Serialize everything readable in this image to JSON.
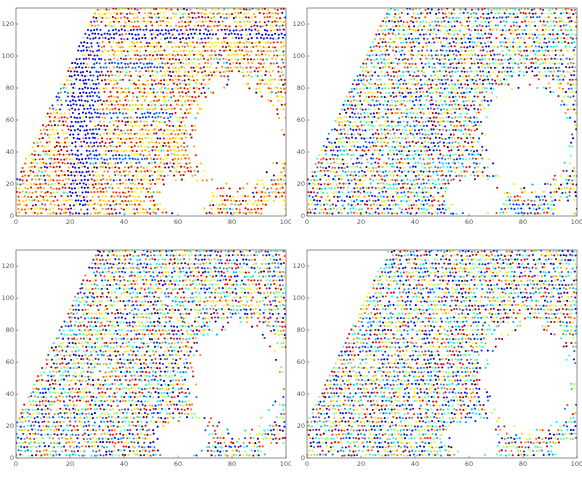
{
  "chart_data": [
    {
      "type": "scatter",
      "panel": "top-left",
      "title": "",
      "xlabel": "",
      "ylabel": "",
      "xlim": [
        0,
        100
      ],
      "ylim": [
        0,
        130
      ],
      "xticks": [
        "0",
        "20",
        "40",
        "60",
        "80",
        "100"
      ],
      "yticks": [
        "0",
        "20",
        "40",
        "60",
        "80",
        "100",
        "120"
      ],
      "grid": false,
      "colormap": "jet",
      "colormap_colors": [
        "#00008f",
        "#0000ff",
        "#00ffff",
        "#ffff00",
        "#ff0000",
        "#800000"
      ],
      "pattern": "structured",
      "structures": [
        {
          "kind": "vertical-band",
          "x": [
            20,
            27
          ],
          "y": [
            0,
            130
          ],
          "value": 0.08
        },
        {
          "kind": "horizontal-band",
          "x": [
            27,
            100
          ],
          "y": [
            110,
            118
          ],
          "value": 0.1
        },
        {
          "kind": "horizontal-band",
          "x": [
            0,
            20
          ],
          "y": [
            69,
            75
          ],
          "value": 0.18
        },
        {
          "kind": "vertical-band",
          "x": [
            27,
            31
          ],
          "y": [
            36,
            110
          ],
          "value": 0.15
        },
        {
          "kind": "horizontal-band",
          "x": [
            27,
            55
          ],
          "y": [
            91,
            96
          ],
          "value": 0.2
        },
        {
          "kind": "horizontal-band",
          "x": [
            27,
            58
          ],
          "y": [
            60,
            65
          ],
          "value": 0.2
        },
        {
          "kind": "horizontal-band",
          "x": [
            27,
            52
          ],
          "y": [
            33,
            38
          ],
          "value": 0.2
        },
        {
          "kind": "horizontal-band",
          "x": [
            8,
            20
          ],
          "y": [
            72,
            82
          ],
          "value": 0.28
        }
      ],
      "empty_regions": [
        {
          "cx": 82,
          "cy": 50,
          "rx": 17,
          "ry": 34
        },
        {
          "cx": 62,
          "cy": 12,
          "rx": 10,
          "ry": 12
        },
        {
          "cx": 96,
          "cy": 4,
          "rx": 4,
          "ry": 6
        }
      ]
    },
    {
      "type": "scatter",
      "panel": "top-right",
      "title": "",
      "xlabel": "",
      "ylabel": "",
      "xlim": [
        0,
        100
      ],
      "ylim": [
        0,
        130
      ],
      "xticks": [
        "0",
        "20",
        "40",
        "60",
        "80",
        "100"
      ],
      "yticks": [
        "0",
        "20",
        "40",
        "60",
        "80",
        "100",
        "120"
      ],
      "grid": false,
      "colormap": "jet",
      "pattern": "random",
      "structures": [],
      "empty_regions": [
        {
          "cx": 82,
          "cy": 50,
          "rx": 17,
          "ry": 34
        },
        {
          "cx": 62,
          "cy": 12,
          "rx": 10,
          "ry": 12
        },
        {
          "cx": 96,
          "cy": 4,
          "rx": 4,
          "ry": 6
        }
      ]
    },
    {
      "type": "scatter",
      "panel": "bottom-left",
      "title": "",
      "xlabel": "",
      "ylabel": "",
      "xlim": [
        0,
        100
      ],
      "ylim": [
        0,
        130
      ],
      "xticks": [
        "0",
        "20",
        "40",
        "60",
        "80",
        "100"
      ],
      "yticks": [
        "0",
        "20",
        "40",
        "60",
        "80",
        "100",
        "120"
      ],
      "grid": false,
      "colormap": "jet",
      "pattern": "random",
      "structures": [],
      "empty_regions": [
        {
          "cx": 82,
          "cy": 50,
          "rx": 17,
          "ry": 34
        },
        {
          "cx": 62,
          "cy": 12,
          "rx": 10,
          "ry": 12
        },
        {
          "cx": 96,
          "cy": 4,
          "rx": 4,
          "ry": 6
        }
      ]
    },
    {
      "type": "scatter",
      "panel": "bottom-right",
      "title": "",
      "xlabel": "",
      "ylabel": "",
      "xlim": [
        0,
        100
      ],
      "ylim": [
        0,
        130
      ],
      "xticks": [
        "0",
        "20",
        "40",
        "60",
        "80",
        "100"
      ],
      "yticks": [
        "0",
        "20",
        "40",
        "60",
        "80",
        "100",
        "120"
      ],
      "grid": false,
      "colormap": "jet",
      "pattern": "random",
      "structures": [],
      "empty_regions": [
        {
          "cx": 82,
          "cy": 50,
          "rx": 17,
          "ry": 34
        },
        {
          "cx": 62,
          "cy": 12,
          "rx": 10,
          "ry": 12
        },
        {
          "cx": 96,
          "cy": 4,
          "rx": 4,
          "ry": 6
        }
      ]
    }
  ]
}
